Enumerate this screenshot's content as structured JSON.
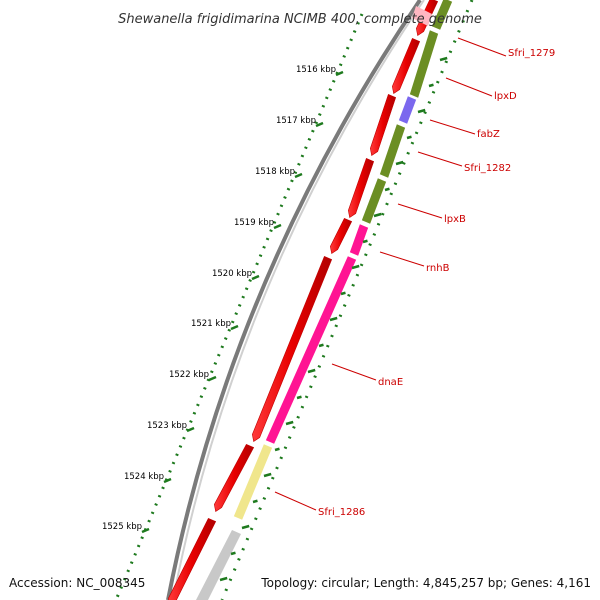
{
  "title": "Shewanella frigidimarina NCIMB 400, complete genome",
  "footer": {
    "accession": "Accession: NC_008345",
    "summary": "Topology: circular; Length: 4,845,257 bp; Genes: 4,161"
  },
  "colors": {
    "forward_cds": "#e80000",
    "backbone": "#7a7a7a",
    "tick_green": "#1e7a1e",
    "label_red": "#cc0000"
  },
  "ticks": [
    {
      "label": "1516 kbp"
    },
    {
      "label": "1517 kbp"
    },
    {
      "label": "1518 kbp"
    },
    {
      "label": "1519 kbp"
    },
    {
      "label": "1520 kbp"
    },
    {
      "label": "1521 kbp"
    },
    {
      "label": "1522 kbp"
    },
    {
      "label": "1523 kbp"
    },
    {
      "label": "1524 kbp"
    },
    {
      "label": "1525 kbp"
    }
  ],
  "genes": [
    {
      "label": "Sfri_1279",
      "color": "#6b8e23"
    },
    {
      "label": "lpxD",
      "color": "#6b8e23"
    },
    {
      "label": "fabZ",
      "color": "#7b68ee"
    },
    {
      "label": "Sfri_1282",
      "color": "#6b8e23"
    },
    {
      "label": "lpxB",
      "color": "#6b8e23"
    },
    {
      "label": "rnhB",
      "color": "#ff1493"
    },
    {
      "label": "dnaE",
      "color": "#ff1493"
    },
    {
      "label": "Sfri_1286",
      "color": "#f0e68c"
    }
  ]
}
